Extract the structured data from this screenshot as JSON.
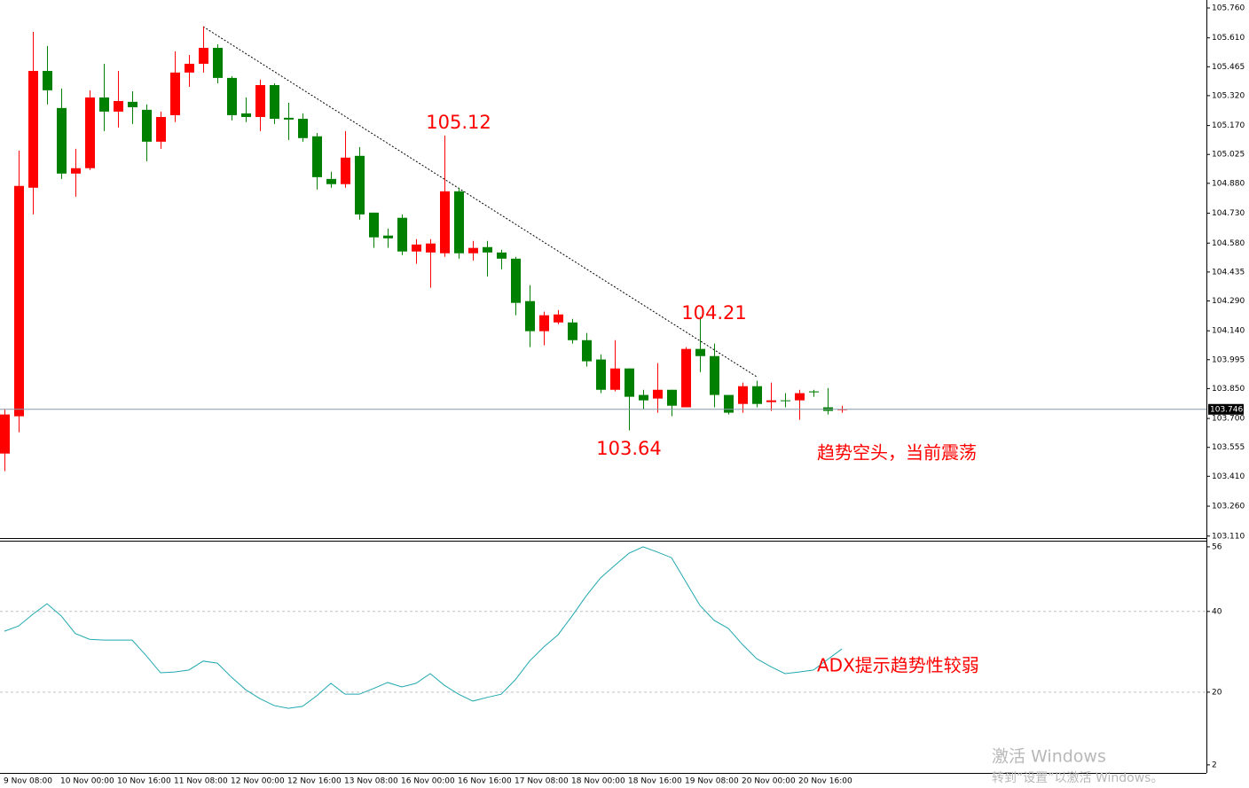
{
  "chart_data": [
    {
      "type": "candlestick",
      "categories": [
        "9 Nov 08:00",
        null,
        null,
        null,
        "10 Nov 00:00",
        null,
        null,
        null,
        "10 Nov 16:00",
        null,
        null,
        null,
        "11 Nov 08:00",
        null,
        null,
        null,
        "12 Nov 00:00",
        null,
        null,
        null,
        "12 Nov 16:00",
        null,
        null,
        null,
        "13 Nov 08:00",
        null,
        null,
        null,
        "16 Nov 00:00",
        null,
        null,
        null,
        "16 Nov 16:00",
        null,
        null,
        null,
        "17 Nov 08:00",
        null,
        null,
        null,
        "18 Nov 00:00",
        null,
        null,
        null,
        "18 Nov 16:00",
        null,
        null,
        null,
        "19 Nov 08:00",
        null,
        null,
        null,
        "20 Nov 00:00",
        null,
        null,
        null,
        "20 Nov 16:00",
        null,
        null,
        null
      ],
      "open": [
        103.524,
        103.711,
        104.858,
        105.444,
        105.258,
        104.929,
        104.956,
        105.311,
        105.24,
        105.289,
        105.249,
        105.089,
        105.222,
        105.436,
        105.48,
        105.56,
        105.409,
        105.231,
        105.213,
        105.373,
        105.209,
        105.204,
        105.116,
        104.902,
        104.876,
        105.018,
        104.733,
        104.618,
        104.707,
        104.538,
        104.533,
        104.529,
        104.84,
        104.529,
        104.56,
        104.533,
        104.502,
        104.289,
        104.138,
        104.182,
        104.182,
        104.093,
        103.996,
        103.844,
        103.951,
        103.818,
        103.8,
        103.844,
        103.756,
        104.049,
        104.013,
        103.818,
        103.773,
        103.862,
        103.782,
        103.791,
        103.791,
        103.836,
        103.756,
        103.742
      ],
      "close": [
        103.72,
        104.867,
        105.444,
        105.347,
        104.929,
        104.956,
        105.311,
        105.24,
        105.293,
        105.262,
        105.089,
        105.213,
        105.436,
        105.48,
        105.56,
        105.409,
        105.222,
        105.213,
        105.373,
        105.204,
        105.2,
        105.107,
        104.911,
        104.876,
        105.009,
        104.724,
        104.609,
        104.604,
        104.538,
        104.573,
        104.578,
        104.84,
        104.529,
        104.556,
        104.533,
        104.502,
        104.28,
        104.138,
        104.218,
        104.222,
        104.093,
        103.987,
        103.844,
        103.951,
        103.809,
        103.791,
        103.844,
        103.764,
        104.049,
        104.013,
        103.818,
        103.729,
        103.862,
        103.773,
        103.791,
        103.787,
        103.827,
        103.831,
        103.738,
        103.747
      ],
      "high": [
        103.747,
        105.044,
        105.64,
        105.569,
        105.356,
        105.053,
        105.347,
        105.48,
        105.444,
        105.342,
        105.276,
        105.24,
        105.542,
        105.524,
        105.667,
        105.578,
        105.418,
        105.311,
        105.4,
        105.382,
        105.284,
        105.231,
        105.133,
        104.938,
        105.142,
        105.062,
        104.733,
        104.653,
        104.724,
        104.6,
        104.6,
        105.12,
        104.858,
        104.591,
        104.591,
        104.547,
        104.511,
        104.369,
        104.236,
        104.244,
        104.2,
        104.129,
        104.022,
        104.093,
        103.951,
        103.844,
        103.978,
        103.844,
        104.058,
        104.21,
        104.076,
        103.818,
        103.88,
        103.889,
        103.88,
        103.827,
        103.844,
        103.844,
        103.853,
        103.764
      ],
      "low": [
        103.436,
        103.631,
        104.724,
        105.276,
        104.902,
        104.813,
        104.947,
        105.142,
        105.16,
        105.178,
        104.991,
        105.053,
        105.187,
        105.364,
        105.436,
        105.382,
        105.196,
        105.187,
        105.142,
        105.178,
        105.098,
        105.089,
        104.849,
        104.858,
        104.858,
        104.698,
        104.556,
        104.556,
        104.52,
        104.476,
        104.356,
        104.511,
        104.502,
        104.493,
        104.413,
        104.449,
        104.218,
        104.058,
        104.067,
        104.173,
        104.076,
        103.96,
        103.827,
        103.836,
        103.64,
        103.747,
        103.729,
        103.711,
        103.756,
        103.933,
        103.756,
        103.72,
        103.729,
        103.756,
        103.738,
        103.756,
        103.693,
        103.809,
        103.72,
        103.729
      ],
      "up_color": "#ff0000",
      "down_color": "#008000",
      "ylim": [
        103.1,
        105.8
      ],
      "yticks": [
        {
          "value": 105.76,
          "label": "105.760"
        },
        {
          "value": 105.61,
          "label": "105.610"
        },
        105.465,
        {
          "value": 105.32,
          "label": "105.320"
        },
        {
          "value": 105.17,
          "label": "105.170"
        },
        105.025,
        {
          "value": 104.88,
          "label": "104.880"
        },
        {
          "value": 104.73,
          "label": "104.730"
        },
        {
          "value": 104.58,
          "label": "104.580"
        },
        104.435,
        {
          "value": 104.29,
          "label": "104.290"
        },
        {
          "value": 104.14,
          "label": "104.140"
        },
        103.995,
        {
          "value": 103.85,
          "label": "103.850"
        },
        {
          "value": 103.7,
          "label": "103.700"
        },
        103.555,
        {
          "value": 103.41,
          "label": "103.410"
        },
        {
          "value": 103.26,
          "label": "103.260"
        },
        {
          "value": 103.11,
          "label": "103.110"
        }
      ],
      "last_price": 103.746,
      "annotations": [
        "105.12",
        "104.21",
        "103.64",
        "趋势空头，当前震荡"
      ]
    },
    {
      "type": "line",
      "name": "ADX",
      "color": "#20a8b0",
      "values": [
        35.1,
        36.4,
        39.3,
        41.9,
        38.9,
        34.5,
        33.1,
        32.9,
        32.9,
        32.9,
        29.0,
        24.8,
        25.0,
        25.5,
        27.7,
        27.2,
        23.7,
        20.6,
        18.4,
        16.7,
        16.0,
        16.5,
        19.1,
        22.2,
        19.5,
        19.5,
        20.9,
        22.4,
        21.3,
        22.2,
        24.6,
        21.7,
        19.5,
        17.8,
        18.7,
        19.5,
        23.1,
        27.7,
        31.2,
        34.2,
        38.9,
        43.9,
        48.3,
        51.4,
        54.4,
        56.0,
        54.7,
        53.3,
        47.4,
        41.5,
        37.8,
        35.8,
        31.8,
        28.3,
        26.3,
        24.6,
        25.0,
        25.5,
        28.1,
        30.7
      ],
      "ylim": [
        0,
        57.3
      ],
      "yticks": [
        56,
        40,
        20,
        2
      ],
      "levels": [
        40,
        20
      ],
      "annotations": [
        "ADX提示趋势性较弱"
      ]
    }
  ],
  "watermark": {
    "title": "激活 Windows",
    "subtitle": "转到“设置”以激活 Windows。"
  }
}
